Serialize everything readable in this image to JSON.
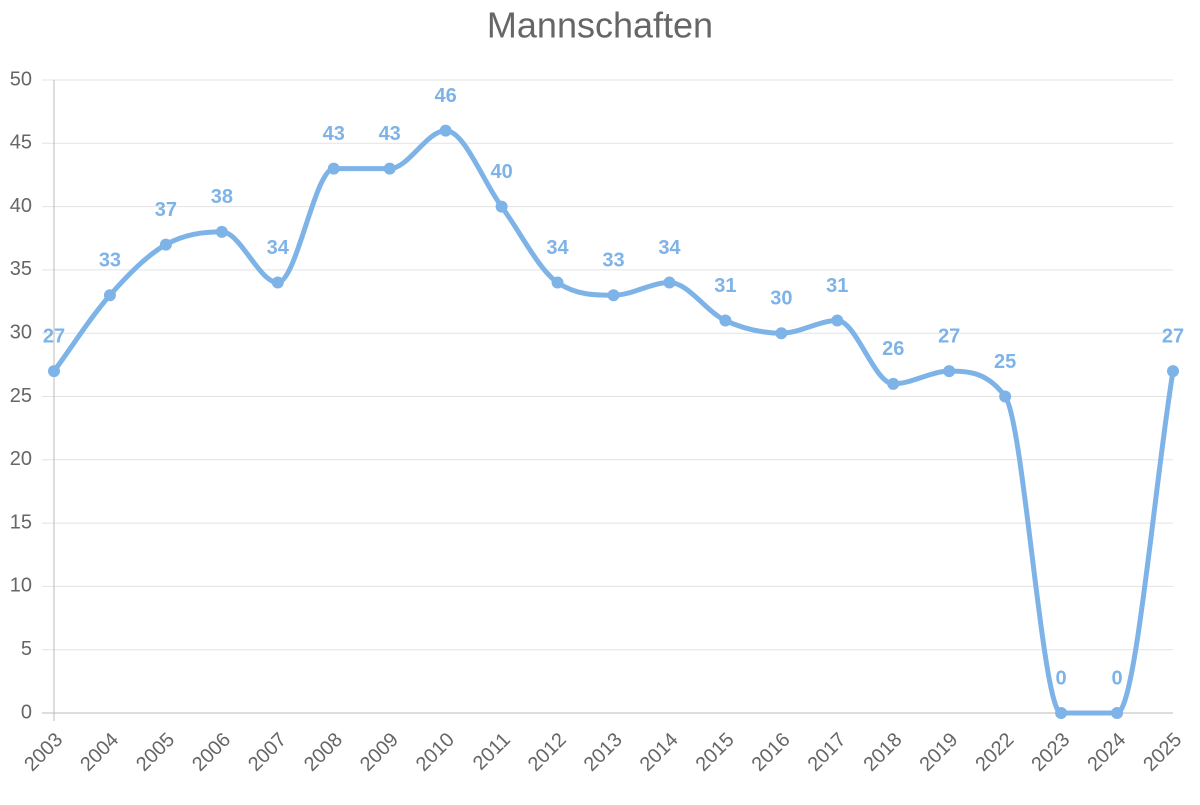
{
  "chart_data": {
    "type": "line",
    "title": "Mannschaften",
    "categories": [
      "2003",
      "2004",
      "2005",
      "2006",
      "2007",
      "2008",
      "2009",
      "2010",
      "2011",
      "2012",
      "2013",
      "2014",
      "2015",
      "2016",
      "2017",
      "2018",
      "2019",
      "2022",
      "2023",
      "2024",
      "2025"
    ],
    "values": [
      27,
      33,
      37,
      38,
      34,
      43,
      43,
      46,
      40,
      34,
      33,
      34,
      31,
      30,
      31,
      26,
      27,
      25,
      0,
      0,
      27
    ],
    "color": "#7eb3e8",
    "ylim": [
      0,
      50
    ],
    "yticks": [
      0,
      5,
      10,
      15,
      20,
      25,
      30,
      35,
      40,
      45,
      50
    ],
    "grid": true
  }
}
